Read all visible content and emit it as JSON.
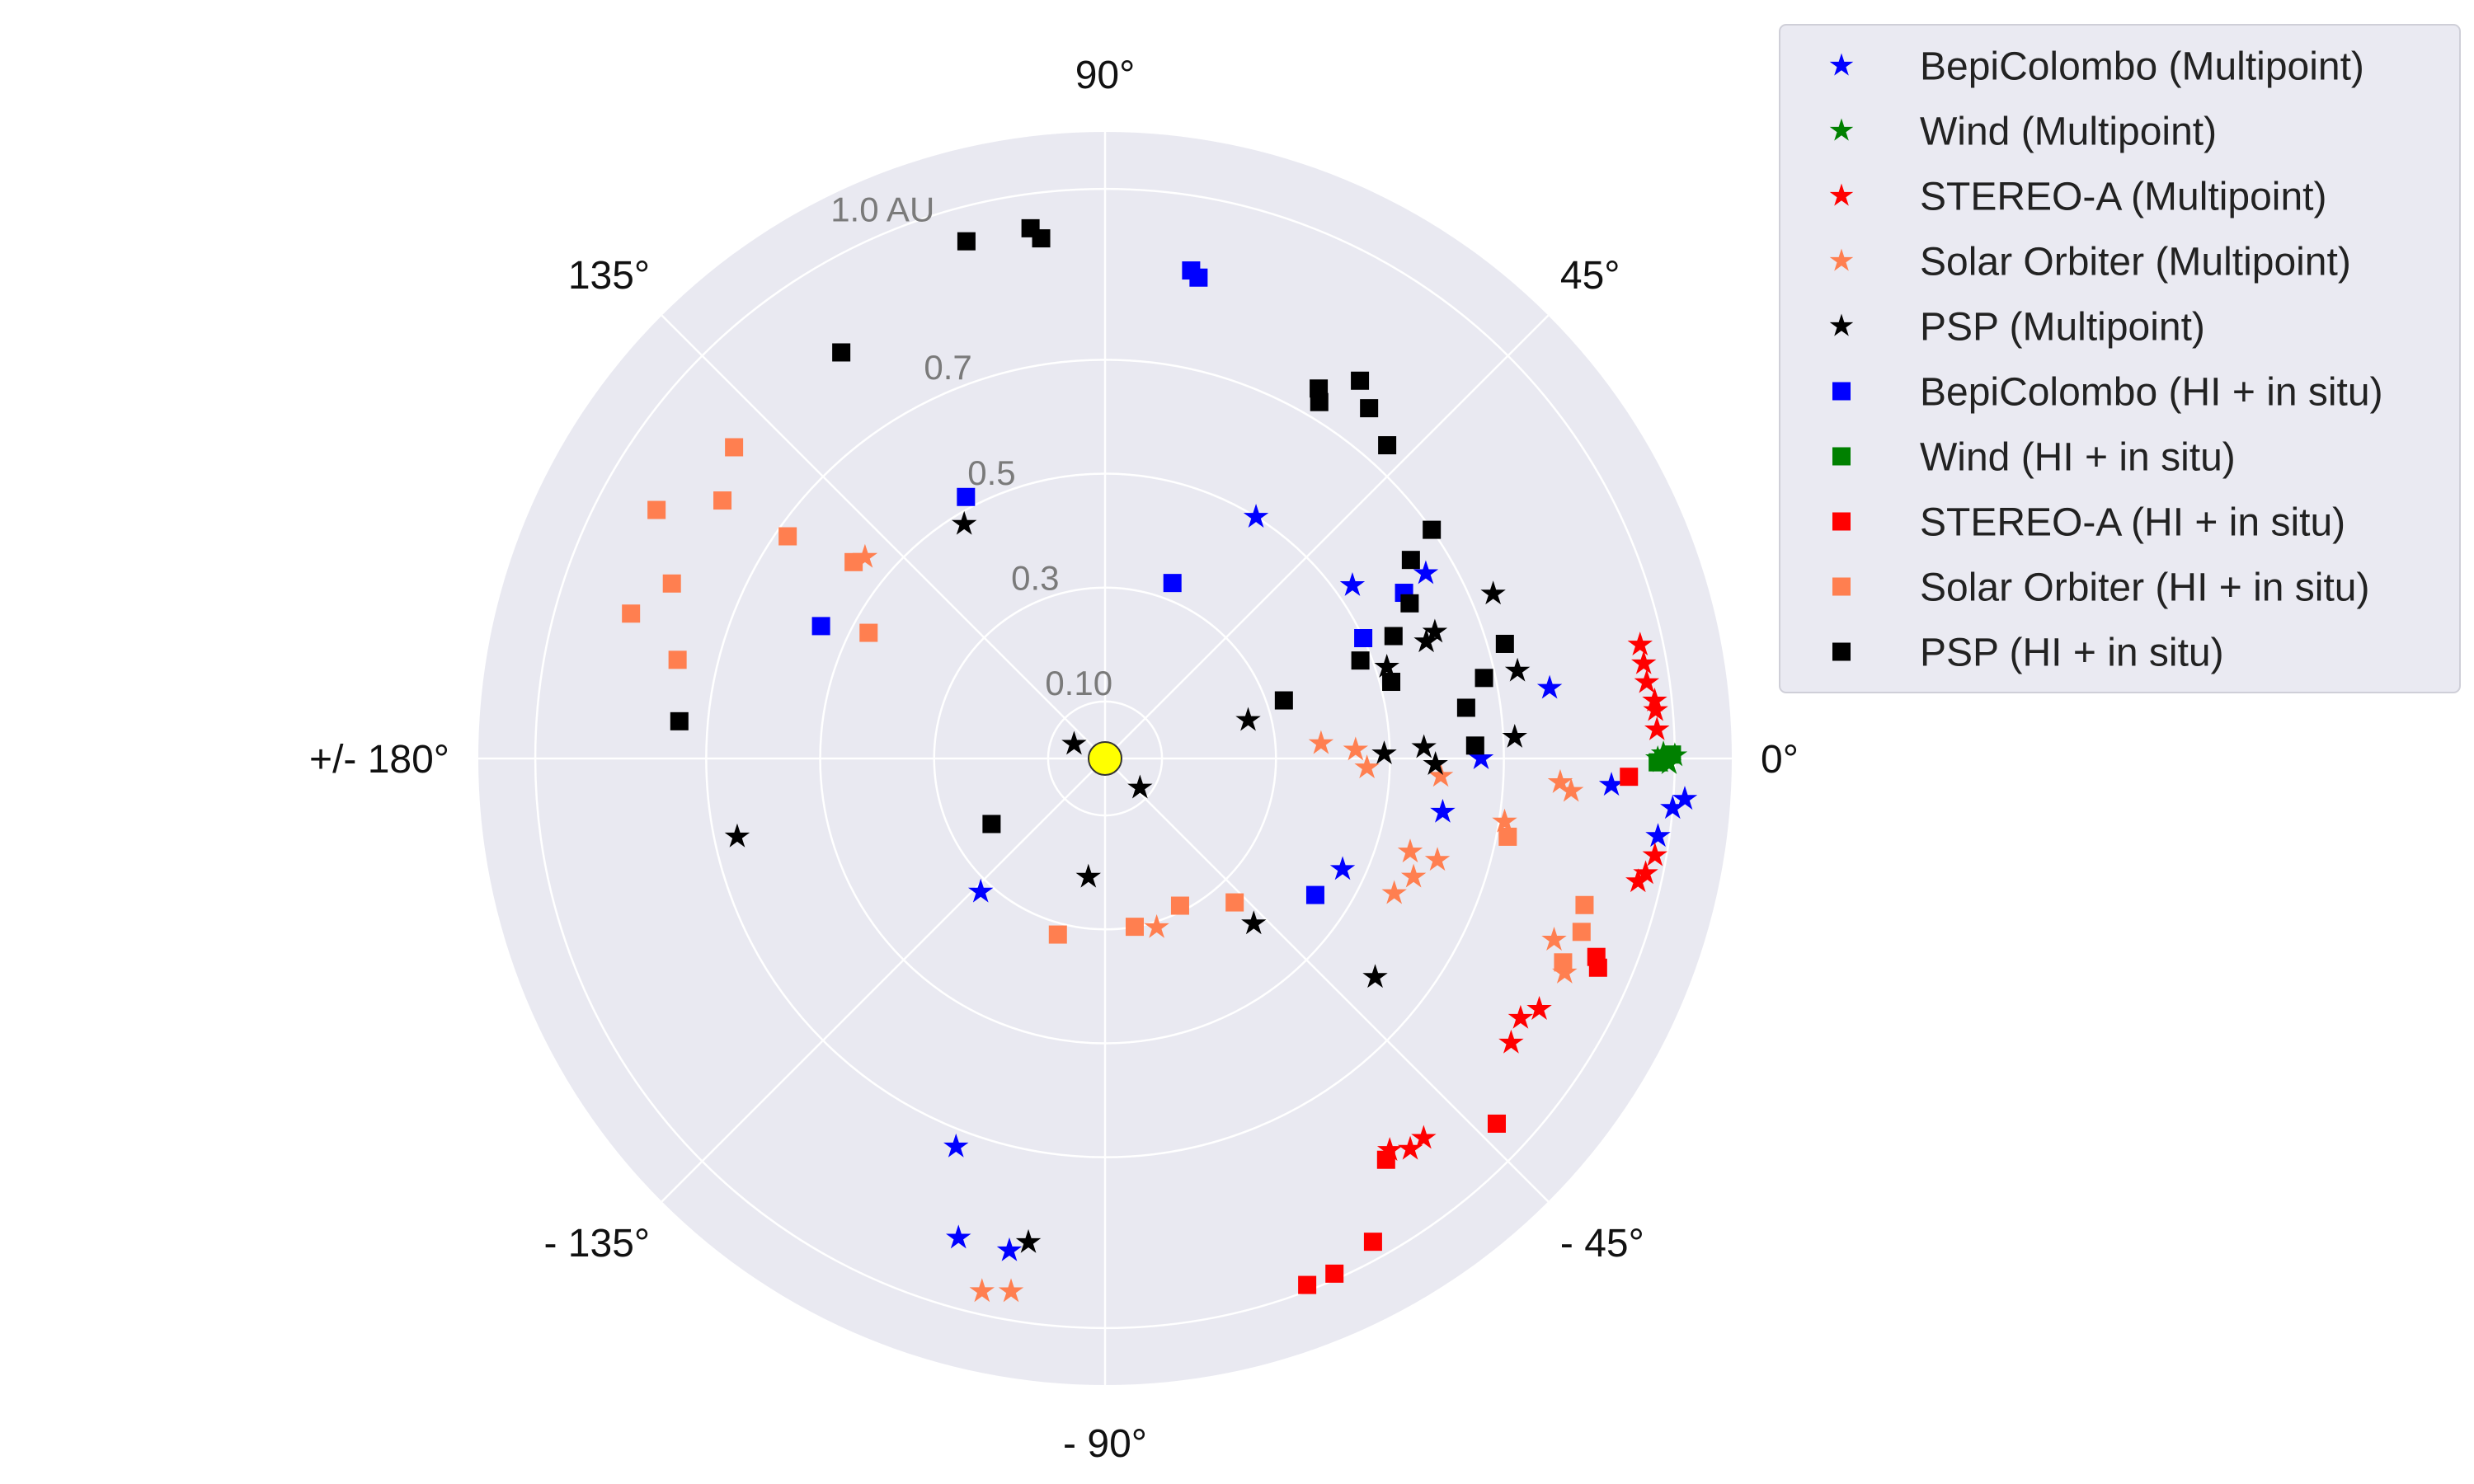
{
  "chart_data": {
    "type": "scatter",
    "projection": "polar",
    "theta_unit": "deg",
    "r_unit": "AU",
    "r_max": 1.1,
    "grid": true,
    "legend_placement": "outside-top-right",
    "angle_tick_labels": [
      {
        "theta": 0,
        "label": "0°"
      },
      {
        "theta": 45,
        "label": "45°"
      },
      {
        "theta": 90,
        "label": "90°"
      },
      {
        "theta": 135,
        "label": "135°"
      },
      {
        "theta": 180,
        "label": "+/- 180°"
      },
      {
        "theta": -135,
        "label": "- 135°"
      },
      {
        "theta": -90,
        "label": "- 90°"
      },
      {
        "theta": -45,
        "label": "- 45°"
      }
    ],
    "radial_ticks": [
      {
        "r": 0.1,
        "label": "0.10"
      },
      {
        "r": 0.3,
        "label": "0.3"
      },
      {
        "r": 0.5,
        "label": "0.5"
      },
      {
        "r": 0.7,
        "label": "0.7"
      },
      {
        "r": 1.0,
        "label": "1.0 AU"
      }
    ],
    "sun_color": "#ffff00",
    "series": [
      {
        "name": "BepiColombo (Multipoint)",
        "marker": "star",
        "color": "#0000ff",
        "points": [
          {
            "theta": 58,
            "r": 0.5
          },
          {
            "theta": 35,
            "r": 0.53
          },
          {
            "theta": 30,
            "r": 0.65
          },
          {
            "theta": 9,
            "r": 0.79
          },
          {
            "theta": 0,
            "r": 0.66
          },
          {
            "theta": -3,
            "r": 0.89
          },
          {
            "theta": -8,
            "r": 0.98
          },
          {
            "theta": -4,
            "r": 1.02
          },
          {
            "theta": -5,
            "r": 1.0
          },
          {
            "theta": -9,
            "r": 0.6
          },
          {
            "theta": -25,
            "r": 0.46
          },
          {
            "theta": -133,
            "r": 0.32
          },
          {
            "theta": -111,
            "r": 0.73
          },
          {
            "theta": -107,
            "r": 0.88
          },
          {
            "theta": -101,
            "r": 0.88
          }
        ]
      },
      {
        "name": "Wind (Multipoint)",
        "marker": "star",
        "color": "#008000",
        "points": [
          {
            "theta": 0,
            "r": 0.97
          },
          {
            "theta": 0.5,
            "r": 0.98
          },
          {
            "theta": -0.5,
            "r": 0.99
          },
          {
            "theta": 0.3,
            "r": 1.0
          },
          {
            "theta": -0.3,
            "r": 0.975
          }
        ]
      },
      {
        "name": "STEREO-A (Multipoint)",
        "marker": "star",
        "color": "#ff0000",
        "points": [
          {
            "theta": 12,
            "r": 0.96
          },
          {
            "theta": 10,
            "r": 0.96
          },
          {
            "theta": 8,
            "r": 0.96
          },
          {
            "theta": 6,
            "r": 0.97
          },
          {
            "theta": 5,
            "r": 0.97
          },
          {
            "theta": 3,
            "r": 0.97
          },
          {
            "theta": -10,
            "r": 0.98
          },
          {
            "theta": -12,
            "r": 0.97
          },
          {
            "theta": -13,
            "r": 0.96
          },
          {
            "theta": -30,
            "r": 0.88
          },
          {
            "theta": -32,
            "r": 0.86
          },
          {
            "theta": -35,
            "r": 0.87
          },
          {
            "theta": -50,
            "r": 0.87
          },
          {
            "theta": -52,
            "r": 0.87
          },
          {
            "theta": -54,
            "r": 0.85
          }
        ]
      },
      {
        "name": "Solar Orbiter (Multipoint)",
        "marker": "star",
        "color": "#ff7f50",
        "points": [
          {
            "theta": 140,
            "r": 0.55
          },
          {
            "theta": 4,
            "r": 0.38
          },
          {
            "theta": 2,
            "r": 0.44
          },
          {
            "theta": -2,
            "r": 0.46
          },
          {
            "theta": -3,
            "r": 0.59
          },
          {
            "theta": -3,
            "r": 0.8
          },
          {
            "theta": -4,
            "r": 0.82
          },
          {
            "theta": -9,
            "r": 0.71
          },
          {
            "theta": -17,
            "r": 0.61
          },
          {
            "theta": -17,
            "r": 0.56
          },
          {
            "theta": -21,
            "r": 0.58
          },
          {
            "theta": -25,
            "r": 0.56
          },
          {
            "theta": -22,
            "r": 0.85
          },
          {
            "theta": -25,
            "r": 0.89
          },
          {
            "theta": -73,
            "r": 0.31
          },
          {
            "theta": -103,
            "r": 0.96
          },
          {
            "theta": -100,
            "r": 0.95
          }
        ]
      },
      {
        "name": "PSP (Multipoint)",
        "marker": "star",
        "color": "#000000",
        "points": [
          {
            "theta": 121,
            "r": 0.48
          },
          {
            "theta": 155,
            "r": 0.06
          },
          {
            "theta": -40,
            "r": 0.08
          },
          {
            "theta": 15,
            "r": 0.26
          },
          {
            "theta": 18,
            "r": 0.52
          },
          {
            "theta": 20,
            "r": 0.6
          },
          {
            "theta": 21,
            "r": 0.62
          },
          {
            "theta": 23,
            "r": 0.74
          },
          {
            "theta": 12,
            "r": 0.74
          },
          {
            "theta": 2,
            "r": 0.56
          },
          {
            "theta": 1,
            "r": 0.49
          },
          {
            "theta": -1,
            "r": 0.58
          },
          {
            "theta": 3,
            "r": 0.72
          },
          {
            "theta": -48,
            "r": 0.39
          },
          {
            "theta": -98,
            "r": 0.21
          },
          {
            "theta": -99,
            "r": 0.86
          },
          {
            "theta": -168,
            "r": 0.66
          },
          {
            "theta": -39,
            "r": 0.61
          }
        ]
      },
      {
        "name": "BepiColombo (HI + in situ)",
        "marker": "square",
        "color": "#0000ff",
        "points": [
          {
            "theta": 80,
            "r": 0.87
          },
          {
            "theta": 79,
            "r": 0.86
          },
          {
            "theta": 118,
            "r": 0.52
          },
          {
            "theta": 69,
            "r": 0.33
          },
          {
            "theta": 29,
            "r": 0.6
          },
          {
            "theta": 25,
            "r": 0.5
          },
          {
            "theta": 155,
            "r": 0.55
          },
          {
            "theta": -33,
            "r": 0.44
          }
        ]
      },
      {
        "name": "Wind (HI + in situ)",
        "marker": "square",
        "color": "#008000",
        "points": [
          {
            "theta": 0,
            "r": 0.98
          },
          {
            "theta": 0.4,
            "r": 0.995
          },
          {
            "theta": -0.4,
            "r": 0.97
          }
        ]
      },
      {
        "name": "STEREO-A (HI + in situ)",
        "marker": "square",
        "color": "#ff0000",
        "points": [
          {
            "theta": -2,
            "r": 0.92
          },
          {
            "theta": -22,
            "r": 0.93
          },
          {
            "theta": -23,
            "r": 0.94
          },
          {
            "theta": -43,
            "r": 0.94
          },
          {
            "theta": -55,
            "r": 0.86
          },
          {
            "theta": -61,
            "r": 0.97
          },
          {
            "theta": -66,
            "r": 0.99
          },
          {
            "theta": -69,
            "r": 0.99
          }
        ]
      },
      {
        "name": "Solar Orbiter (HI + in situ)",
        "marker": "square",
        "color": "#ff7f50",
        "points": [
          {
            "theta": 140,
            "r": 0.85
          },
          {
            "theta": 146,
            "r": 0.81
          },
          {
            "theta": 151,
            "r": 0.9
          },
          {
            "theta": 158,
            "r": 0.82
          },
          {
            "theta": 163,
            "r": 0.87
          },
          {
            "theta": 167,
            "r": 0.77
          },
          {
            "theta": 145,
            "r": 0.68
          },
          {
            "theta": 142,
            "r": 0.56
          },
          {
            "theta": 152,
            "r": 0.47
          },
          {
            "theta": -11,
            "r": 0.72
          },
          {
            "theta": -17,
            "r": 0.88
          },
          {
            "theta": -20,
            "r": 0.89
          },
          {
            "theta": -24,
            "r": 0.88
          },
          {
            "theta": -63,
            "r": 0.29
          },
          {
            "theta": -80,
            "r": 0.3
          },
          {
            "theta": -48,
            "r": 0.34
          },
          {
            "theta": -105,
            "r": 0.32
          }
        ]
      },
      {
        "name": "PSP (HI + in situ)",
        "marker": "square",
        "color": "#000000",
        "points": [
          {
            "theta": 105,
            "r": 0.94
          },
          {
            "theta": 98,
            "r": 0.94
          },
          {
            "theta": 97,
            "r": 0.92
          },
          {
            "theta": 123,
            "r": 0.85
          },
          {
            "theta": 56,
            "r": 0.8
          },
          {
            "theta": 53,
            "r": 0.77
          },
          {
            "theta": 60,
            "r": 0.75
          },
          {
            "theta": 59,
            "r": 0.73
          },
          {
            "theta": 48,
            "r": 0.74
          },
          {
            "theta": 35,
            "r": 0.7
          },
          {
            "theta": 33,
            "r": 0.64
          },
          {
            "theta": 27,
            "r": 0.6
          },
          {
            "theta": 23,
            "r": 0.55
          },
          {
            "theta": 15,
            "r": 0.52
          },
          {
            "theta": 12,
            "r": 0.68
          },
          {
            "theta": 16,
            "r": 0.73
          },
          {
            "theta": 8,
            "r": 0.64
          },
          {
            "theta": 2,
            "r": 0.65
          },
          {
            "theta": 18,
            "r": 0.33
          },
          {
            "theta": 21,
            "r": 0.48
          },
          {
            "theta": 175,
            "r": 0.75
          },
          {
            "theta": -150,
            "r": 0.23
          }
        ]
      }
    ]
  }
}
